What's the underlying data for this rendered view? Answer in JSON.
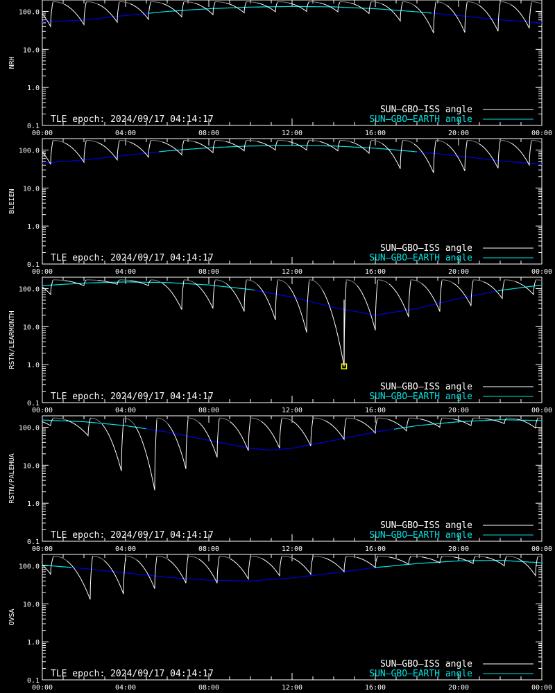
{
  "epoch_text": "TLE epoch: 2024/09/17 04:14:17",
  "legend": [
    {
      "label": "SUN–GBO–ISS angle",
      "color": "#ffffff"
    },
    {
      "label": "SUN–GBO–EARTH angle",
      "color": "#00e5e5"
    }
  ],
  "colors": {
    "background": "#000000",
    "earth_low": "#0000e0",
    "iss_night": "#808080",
    "marker": "#ffff00"
  },
  "chart_data": [
    {
      "type": "line",
      "station": "NRH",
      "scale": "log",
      "ylim": [
        0.1,
        200
      ],
      "y_ticks": [
        "0.1",
        "1.0",
        "10.0",
        "100.0"
      ],
      "x_ticks": [
        "00:00",
        "04:00",
        "08:00",
        "12:00",
        "16:00",
        "20:00",
        "00:00"
      ],
      "xlim_hours": [
        0,
        24
      ],
      "earth_angle": [
        [
          0,
          52
        ],
        [
          2,
          60
        ],
        [
          4,
          78
        ],
        [
          6,
          100
        ],
        [
          8,
          118
        ],
        [
          10,
          130
        ],
        [
          12,
          135
        ],
        [
          14,
          132
        ],
        [
          16,
          118
        ],
        [
          18,
          98
        ],
        [
          20,
          78
        ],
        [
          22,
          60
        ],
        [
          24,
          50
        ]
      ],
      "iss_dips_hours": [
        0.4,
        2.0,
        3.6,
        5.1,
        6.7,
        8.2,
        9.7,
        11.2,
        12.7,
        14.2,
        15.7,
        17.2,
        18.8,
        20.3,
        21.9,
        23.4
      ],
      "iss_dip_min": [
        40,
        45,
        52,
        62,
        72,
        82,
        92,
        98,
        100,
        98,
        88,
        56,
        27,
        28,
        30,
        36
      ],
      "iss_peak": 180
    },
    {
      "type": "line",
      "station": "BLEIEN",
      "scale": "log",
      "ylim": [
        0.1,
        200
      ],
      "y_ticks": [
        "0.1",
        "1.0",
        "10.0",
        "100.0"
      ],
      "x_ticks": [
        "00:00",
        "04:00",
        "08:00",
        "12:00",
        "16:00",
        "20:00",
        "00:00"
      ],
      "xlim_hours": [
        0,
        24
      ],
      "earth_angle": [
        [
          0,
          45
        ],
        [
          2,
          55
        ],
        [
          4,
          72
        ],
        [
          6,
          95
        ],
        [
          8,
          115
        ],
        [
          10,
          128
        ],
        [
          12,
          132
        ],
        [
          14,
          128
        ],
        [
          16,
          112
        ],
        [
          18,
          90
        ],
        [
          20,
          70
        ],
        [
          22,
          52
        ],
        [
          24,
          42
        ]
      ],
      "iss_dips_hours": [
        0.4,
        2.0,
        3.6,
        5.1,
        6.7,
        8.2,
        9.7,
        11.2,
        12.7,
        14.2,
        15.7,
        17.2,
        18.8,
        20.3,
        21.9,
        23.4
      ],
      "iss_dip_min": [
        42,
        48,
        55,
        65,
        75,
        85,
        95,
        100,
        100,
        95,
        82,
        32,
        25,
        28,
        33,
        40
      ],
      "iss_peak": 180
    },
    {
      "type": "line",
      "station": "RSTN/LEARMONTH",
      "scale": "log",
      "ylim": [
        0.1,
        200
      ],
      "y_ticks": [
        "0.1",
        "1.0",
        "10.0",
        "100.0"
      ],
      "x_ticks": [
        "00:00",
        "04:00",
        "08:00",
        "12:00",
        "16:00",
        "20:00",
        "00:00"
      ],
      "xlim_hours": [
        0,
        24
      ],
      "earth_angle": [
        [
          0,
          120
        ],
        [
          2,
          140
        ],
        [
          4,
          150
        ],
        [
          6,
          145
        ],
        [
          8,
          125
        ],
        [
          10,
          95
        ],
        [
          12,
          60
        ],
        [
          14,
          32
        ],
        [
          16,
          20
        ],
        [
          18,
          30
        ],
        [
          20,
          55
        ],
        [
          22,
          90
        ],
        [
          24,
          125
        ]
      ],
      "iss_dips_hours": [
        0.4,
        2.0,
        3.6,
        5.1,
        6.7,
        8.2,
        9.7,
        11.2,
        12.7,
        14.5,
        16.0,
        17.6,
        19.1,
        20.6,
        22.1,
        23.6
      ],
      "iss_dip_min": [
        70,
        120,
        130,
        120,
        28,
        30,
        25,
        15,
        7,
        0.9,
        8,
        18,
        25,
        35,
        55,
        70
      ],
      "iss_peak": 170,
      "marker": {
        "x_hours": 14.5,
        "y": 0.9
      }
    },
    {
      "type": "line",
      "station": "RSTN/PALEHUA",
      "scale": "log",
      "ylim": [
        0.1,
        200
      ],
      "y_ticks": [
        "0.1",
        "1.0",
        "10.0",
        "100.0"
      ],
      "x_ticks": [
        "00:00",
        "04:00",
        "08:00",
        "12:00",
        "16:00",
        "20:00",
        "00:00"
      ],
      "xlim_hours": [
        0,
        24
      ],
      "earth_angle": [
        [
          0,
          155
        ],
        [
          2,
          140
        ],
        [
          4,
          110
        ],
        [
          6,
          75
        ],
        [
          8,
          45
        ],
        [
          10,
          28
        ],
        [
          11,
          25
        ],
        [
          12,
          28
        ],
        [
          14,
          45
        ],
        [
          16,
          75
        ],
        [
          18,
          110
        ],
        [
          20,
          140
        ],
        [
          22,
          158
        ],
        [
          24,
          150
        ]
      ],
      "iss_dips_hours": [
        0.4,
        2.2,
        3.8,
        5.4,
        6.9,
        8.4,
        9.9,
        11.4,
        12.9,
        14.5,
        16.0,
        17.5,
        19.1,
        20.6,
        22.2,
        23.7
      ],
      "iss_dip_min": [
        110,
        60,
        7,
        2.2,
        8,
        16,
        24,
        28,
        32,
        48,
        70,
        80,
        100,
        110,
        125,
        95
      ],
      "iss_peak": 175
    },
    {
      "type": "line",
      "station": "OVSA",
      "scale": "log",
      "ylim": [
        0.1,
        200
      ],
      "y_ticks": [
        "0.1",
        "1.0",
        "10.0",
        "100.0"
      ],
      "x_ticks": [
        "00:00",
        "04:00",
        "08:00",
        "12:00",
        "16:00",
        "20:00",
        "00:00"
      ],
      "xlim_hours": [
        0,
        24
      ],
      "earth_angle": [
        [
          0,
          105
        ],
        [
          2,
          85
        ],
        [
          4,
          65
        ],
        [
          6,
          50
        ],
        [
          8,
          42
        ],
        [
          10,
          40
        ],
        [
          12,
          48
        ],
        [
          14,
          65
        ],
        [
          16,
          90
        ],
        [
          18,
          115
        ],
        [
          20,
          135
        ],
        [
          22,
          140
        ],
        [
          24,
          120
        ]
      ],
      "iss_dips_hours": [
        0.4,
        2.3,
        3.9,
        5.4,
        6.9,
        8.4,
        9.9,
        11.4,
        12.9,
        14.5,
        16.0,
        17.6,
        19.1,
        20.7,
        22.2,
        23.7
      ],
      "iss_dip_min": [
        60,
        13,
        18,
        25,
        35,
        35,
        45,
        55,
        60,
        70,
        90,
        110,
        120,
        115,
        100,
        55
      ],
      "iss_peak": 180
    }
  ]
}
